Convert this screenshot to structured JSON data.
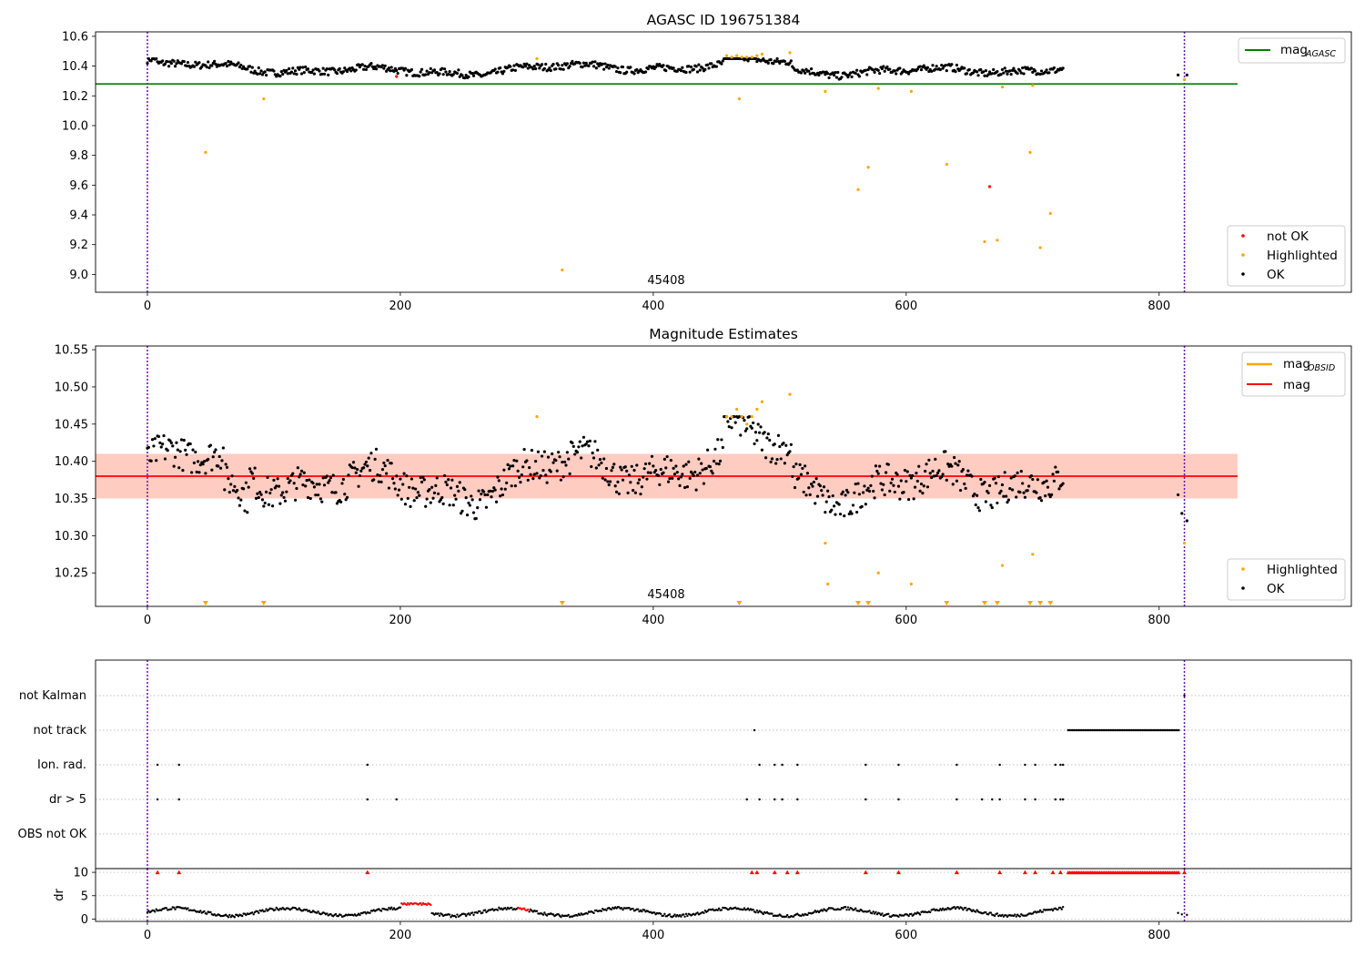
{
  "chart_data": [
    {
      "type": "scatter",
      "title": "AGASC ID 196751384",
      "xlim": [
        -41,
        952
      ],
      "ylim": [
        8.88,
        10.63
      ],
      "xticks": [
        0,
        200,
        400,
        600,
        800
      ],
      "yticks": [
        9.0,
        9.2,
        9.4,
        9.6,
        9.8,
        10.0,
        10.2,
        10.4,
        10.6
      ],
      "ytick_labels": [
        "9.0",
        "9.2",
        "9.4",
        "9.6",
        "9.8",
        "10.0",
        "10.2",
        "10.4",
        "10.6"
      ],
      "annotation": {
        "text": "45408",
        "x": 410
      },
      "obs_boundaries": [
        0,
        820
      ],
      "hline": {
        "y": 10.28,
        "x_end": 862,
        "color": "#008000",
        "label_main": "mag",
        "label_sub": "AGASC"
      },
      "legend_top": "top-right",
      "legend_bottom": [
        {
          "label": "not OK",
          "color": "#ff0000"
        },
        {
          "label": "Highlighted",
          "color": "#ffa500"
        },
        {
          "label": "OK",
          "color": "#000000"
        }
      ],
      "colors": {
        "ok": "#000000",
        "highlighted": "#ffa500",
        "not_ok": "#ff0000"
      },
      "series_ok": {
        "x_start": 0,
        "x_end": 724,
        "x_tail": [
          815,
          822
        ],
        "min": 10.29,
        "max": 10.45,
        "typical": 10.38
      },
      "highlighted": [
        [
          46,
          9.82
        ],
        [
          92,
          10.18
        ],
        [
          308,
          10.45
        ],
        [
          328,
          9.03
        ],
        [
          468,
          10.18
        ],
        [
          458,
          10.47
        ],
        [
          462,
          10.46
        ],
        [
          466,
          10.47
        ],
        [
          470,
          10.46
        ],
        [
          474,
          10.46
        ],
        [
          478,
          10.46
        ],
        [
          482,
          10.47
        ],
        [
          486,
          10.48
        ],
        [
          508,
          10.49
        ],
        [
          536,
          10.23
        ],
        [
          562,
          9.57
        ],
        [
          570,
          9.72
        ],
        [
          578,
          10.25
        ],
        [
          604,
          10.23
        ],
        [
          632,
          9.74
        ],
        [
          662,
          9.22
        ],
        [
          672,
          9.23
        ],
        [
          676,
          10.26
        ],
        [
          698,
          9.82
        ],
        [
          700,
          10.27
        ],
        [
          706,
          9.18
        ],
        [
          714,
          9.41
        ],
        [
          820,
          10.31
        ]
      ],
      "not_ok": [
        [
          197,
          10.33
        ],
        [
          666,
          9.59
        ]
      ]
    },
    {
      "type": "scatter",
      "title": "Magnitude Estimates",
      "xlim": [
        -41,
        952
      ],
      "ylim": [
        10.205,
        10.555
      ],
      "xticks": [
        0,
        200,
        400,
        600,
        800
      ],
      "yticks": [
        10.25,
        10.3,
        10.35,
        10.4,
        10.45,
        10.5,
        10.55
      ],
      "ytick_labels": [
        "10.25",
        "10.30",
        "10.35",
        "10.40",
        "10.45",
        "10.50",
        "10.55"
      ],
      "annotation": {
        "text": "45408",
        "x": 410
      },
      "obs_boundaries": [
        0,
        820
      ],
      "mag_line": {
        "y": 10.38,
        "x_end": 862,
        "color": "#ff0000",
        "label": "mag"
      },
      "band": {
        "y_low": 10.35,
        "y_high": 10.41
      },
      "mag_obsid": {
        "label_main": "mag",
        "label_sub": "OBSID",
        "color": "#ffa500"
      },
      "legend_top": "top-right",
      "legend_bottom": [
        {
          "label": "Highlighted",
          "color": "#ffa500"
        },
        {
          "label": "OK",
          "color": "#000000"
        }
      ],
      "series_ok": {
        "x_start": 0,
        "x_end": 724,
        "min": 10.3,
        "max": 10.46,
        "typical": 10.38
      },
      "highlighted": [
        [
          308,
          10.46
        ],
        [
          458,
          10.46
        ],
        [
          462,
          10.46
        ],
        [
          466,
          10.47
        ],
        [
          470,
          10.46
        ],
        [
          474,
          10.45
        ],
        [
          478,
          10.46
        ],
        [
          482,
          10.47
        ],
        [
          486,
          10.48
        ],
        [
          508,
          10.49
        ],
        [
          536,
          10.29
        ],
        [
          538,
          10.235
        ],
        [
          578,
          10.25
        ],
        [
          604,
          10.235
        ],
        [
          676,
          10.26
        ],
        [
          700,
          10.275
        ],
        [
          820,
          10.29
        ]
      ],
      "off_scale_markers": [
        46,
        92,
        328,
        468,
        562,
        570,
        632,
        662,
        672,
        698,
        706,
        714
      ]
    },
    {
      "type": "scatter",
      "xlim": [
        -41,
        952
      ],
      "categories": [
        "not Kalman",
        "not track",
        "Ion. rad.",
        "dr > 5",
        "OBS not OK"
      ],
      "obs_boundaries": [
        0,
        820
      ],
      "flags": {
        "not Kalman": [
          820
        ],
        "not track": [
          480
        ],
        "Ion. rad.": [
          8,
          25,
          174,
          484,
          496,
          502,
          514,
          568,
          594,
          640,
          674,
          694,
          702,
          718,
          722,
          724
        ],
        "dr > 5": [
          8,
          25,
          174,
          197,
          474,
          484,
          496,
          502,
          514,
          568,
          594,
          640,
          660,
          668,
          674,
          694,
          702,
          718,
          722,
          724
        ],
        "not_track_range": [
          728,
          816
        ]
      },
      "dr_panel": {
        "ylabel": "dr",
        "ylim": [
          -0.5,
          10.8
        ],
        "yticks": [
          0,
          5,
          10
        ],
        "ytick_labels": [
          "0",
          "5",
          "10"
        ],
        "xticks": [
          0,
          200,
          400,
          600,
          800
        ],
        "ok_typical": 1.5,
        "clipped_value": 10,
        "red_high": [
          [
            8,
            10
          ],
          [
            25,
            10
          ],
          [
            174,
            10
          ],
          [
            478,
            10
          ],
          [
            482,
            10
          ],
          [
            496,
            10
          ],
          [
            506,
            10
          ],
          [
            514,
            10
          ],
          [
            568,
            10
          ],
          [
            594,
            10
          ],
          [
            640,
            10
          ],
          [
            674,
            10
          ],
          [
            694,
            10
          ],
          [
            702,
            10
          ],
          [
            716,
            10
          ],
          [
            722,
            10
          ],
          [
            820,
            10
          ]
        ]
      }
    }
  ]
}
